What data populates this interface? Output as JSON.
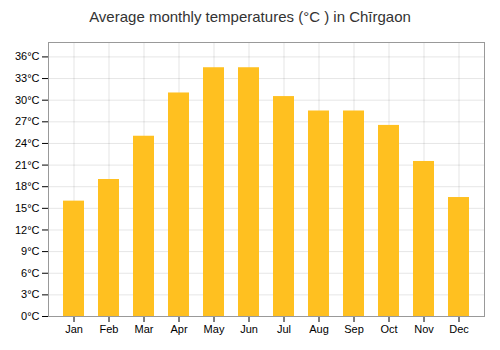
{
  "chart_data": {
    "type": "bar",
    "title": "Average monthly temperatures (°C ) in Chīrgaon",
    "categories": [
      "Jan",
      "Feb",
      "Mar",
      "Apr",
      "May",
      "Jun",
      "Jul",
      "Aug",
      "Sep",
      "Oct",
      "Nov",
      "Dec"
    ],
    "values": [
      16,
      19,
      25,
      31,
      34.5,
      34.5,
      30.5,
      28.5,
      28.5,
      26.5,
      21.5,
      16.5
    ],
    "color": "#FFC020",
    "ylim": [
      0,
      38
    ],
    "yticks": [
      {
        "value": 0,
        "label": "0°C"
      },
      {
        "value": 3,
        "label": "3°C"
      },
      {
        "value": 6,
        "label": "6°C"
      },
      {
        "value": 9,
        "label": "9°C"
      },
      {
        "value": 12,
        "label": "12°C"
      },
      {
        "value": 15,
        "label": "15°C"
      },
      {
        "value": 18,
        "label": "18°C"
      },
      {
        "value": 21,
        "label": "21°C"
      },
      {
        "value": 24,
        "label": "24°C"
      },
      {
        "value": 27,
        "label": "27°C"
      },
      {
        "value": 30,
        "label": "30°C"
      },
      {
        "value": 33,
        "label": "33°C"
      },
      {
        "value": 36,
        "label": "36°C"
      }
    ],
    "grid": true
  }
}
